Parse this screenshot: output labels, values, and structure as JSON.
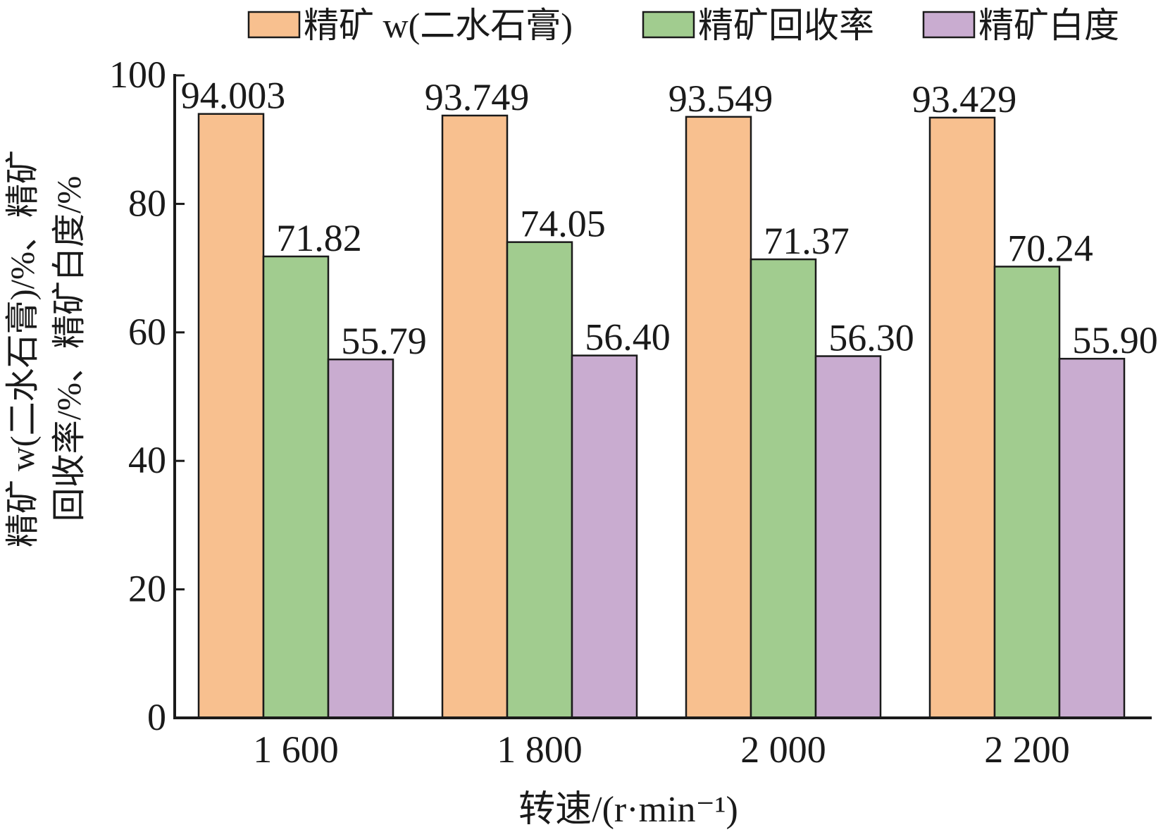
{
  "chart_data": {
    "type": "bar",
    "title": "",
    "xlabel": "转速/(r·min⁻¹)",
    "ylabel_line1": "精矿 w(二水石膏)/%、精矿",
    "ylabel_line2": "回收率/%、精矿白度/%",
    "categories": [
      "1 600",
      "1 800",
      "2 000",
      "2 200"
    ],
    "ylim": [
      0,
      100
    ],
    "yticks": [
      0,
      20,
      40,
      60,
      80,
      100
    ],
    "grid": false,
    "legend_position": "top",
    "series": [
      {
        "name": "精矿 w(二水石膏)",
        "color": "#f8c08f",
        "values": [
          94.003,
          93.749,
          93.549,
          93.429
        ],
        "labels": [
          "94.003",
          "93.749",
          "93.549",
          "93.429"
        ]
      },
      {
        "name": "精矿回收率",
        "color": "#a1cc8f",
        "values": [
          71.82,
          74.05,
          71.37,
          70.24
        ],
        "labels": [
          "71.82",
          "74.05",
          "71.37",
          "70.24"
        ]
      },
      {
        "name": "精矿白度",
        "color": "#c9acd0",
        "values": [
          55.79,
          56.4,
          56.3,
          55.9
        ],
        "labels": [
          "55.79",
          "56.40",
          "56.30",
          "55.90"
        ]
      }
    ]
  }
}
